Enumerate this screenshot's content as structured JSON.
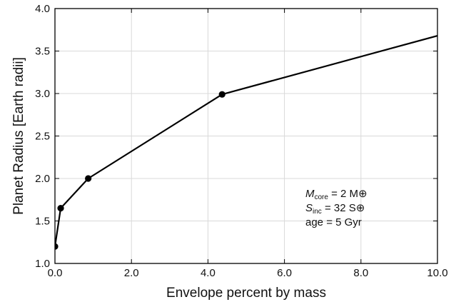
{
  "chart_data": {
    "type": "line",
    "title": "",
    "xlabel": "Envelope percent by mass",
    "ylabel": "Planet Radius [Earth radii]",
    "xlim": [
      0,
      10
    ],
    "ylim": [
      1.0,
      4.0
    ],
    "grid": true,
    "xticks": [
      0,
      2,
      4,
      6,
      8,
      10
    ],
    "xtick_labels": [
      "0.0",
      "2.0",
      "4.0",
      "6.0",
      "8.0",
      "10.0"
    ],
    "yticks": [
      1.0,
      1.5,
      2.0,
      2.5,
      3.0,
      3.5,
      4.0
    ],
    "ytick_labels": [
      "1.0",
      "1.5",
      "2.0",
      "2.5",
      "3.0",
      "3.5",
      "4.0"
    ],
    "series": [
      {
        "x": [
          0.0,
          0.15,
          0.87,
          4.37,
          10.0
        ],
        "y": [
          1.2,
          1.65,
          2.0,
          2.99,
          3.68
        ],
        "marker_x": [
          0.0,
          0.15,
          0.87,
          4.37
        ],
        "marker_y": [
          1.2,
          1.65,
          2.0,
          2.99
        ],
        "color": "#000000"
      }
    ],
    "annotations": [
      {
        "main": "M",
        "sub": "core",
        "rest": " =  2 M⊕"
      },
      {
        "main": "S",
        "sub": "inc",
        "rest": " =   32 S⊕"
      },
      {
        "main": "age =  5 Gyr",
        "sub": "",
        "rest": ""
      }
    ]
  }
}
